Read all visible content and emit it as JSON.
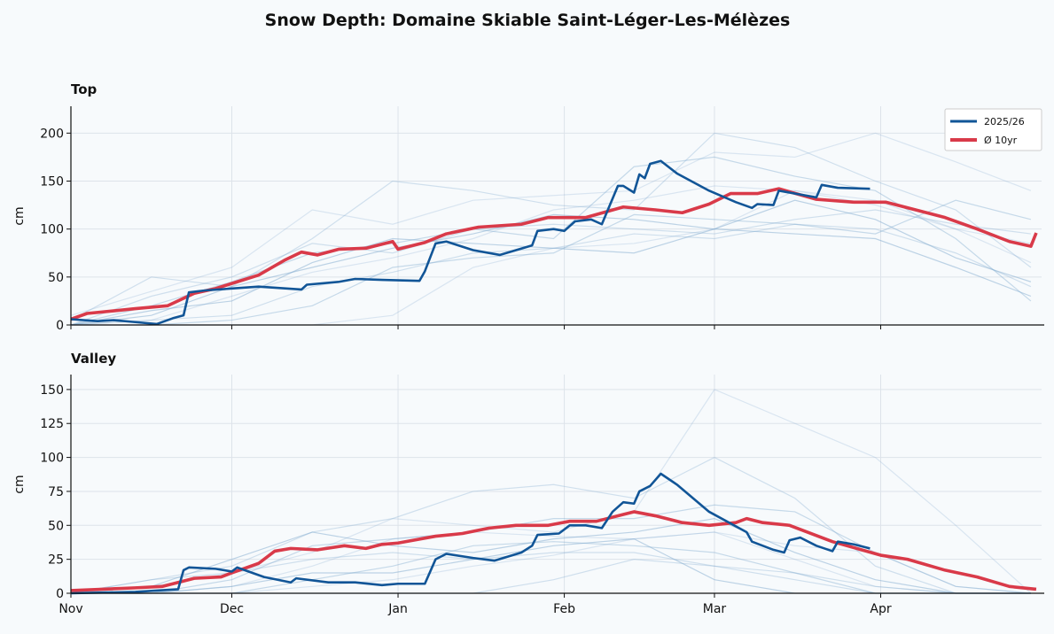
{
  "chart_data": {
    "title": "Snow Depth: Domaine Skiable Saint-Léger-Les-Mélèzes",
    "type": "line",
    "x_ticks": [
      {
        "label": "Nov",
        "date": "11-01"
      },
      {
        "label": "Dec",
        "date": "12-01"
      },
      {
        "label": "Jan",
        "date": "01-01"
      },
      {
        "label": "Feb",
        "date": "02-01"
      },
      {
        "label": "Mar",
        "date": "03-01"
      },
      {
        "label": "Apr",
        "date": "04-01"
      }
    ],
    "xlim": [
      "11-01",
      "04-30"
    ],
    "grid": true,
    "legend": {
      "placement": "top-right",
      "entries": [
        "2025/26",
        "Ø 10yr"
      ]
    },
    "colors": {
      "current": "#115597",
      "average": "#d93a49",
      "history": "#7fa9cf"
    },
    "history_dates": [
      "11-01",
      "11-16",
      "12-01",
      "12-16",
      "12-31",
      "01-15",
      "01-30",
      "02-14",
      "03-01",
      "03-16",
      "03-31",
      "04-15",
      "04-29"
    ],
    "panels": [
      {
        "title": "Top",
        "ylabel": "cm",
        "ylim": [
          0,
          228
        ],
        "yticks": [
          0,
          50,
          100,
          150,
          200
        ],
        "current": {
          "name": "2025/26",
          "points": [
            [
              "11-01",
              6
            ],
            [
              "11-06",
              4
            ],
            [
              "11-09",
              5
            ],
            [
              "11-13",
              3
            ],
            [
              "11-17",
              1
            ],
            [
              "11-20",
              7
            ],
            [
              "11-22",
              10
            ],
            [
              "11-23",
              34
            ],
            [
              "11-26",
              36
            ],
            [
              "12-01",
              38
            ],
            [
              "12-06",
              40
            ],
            [
              "12-14",
              37
            ],
            [
              "12-15",
              42
            ],
            [
              "12-21",
              45
            ],
            [
              "12-24",
              48
            ],
            [
              "12-29",
              47
            ],
            [
              "01-05",
              46
            ],
            [
              "01-06",
              56
            ],
            [
              "01-08",
              85
            ],
            [
              "01-10",
              87
            ],
            [
              "01-15",
              78
            ],
            [
              "01-20",
              73
            ],
            [
              "01-26",
              83
            ],
            [
              "01-27",
              98
            ],
            [
              "01-30",
              100
            ],
            [
              "02-01",
              98
            ],
            [
              "02-03",
              108
            ],
            [
              "02-06",
              110
            ],
            [
              "02-08",
              105
            ],
            [
              "02-11",
              145
            ],
            [
              "02-12",
              145
            ],
            [
              "02-14",
              138
            ],
            [
              "02-15",
              157
            ],
            [
              "02-16",
              153
            ],
            [
              "02-17",
              168
            ],
            [
              "02-19",
              171
            ],
            [
              "02-22",
              158
            ],
            [
              "02-28",
              140
            ],
            [
              "03-05",
              128
            ],
            [
              "03-08",
              122
            ],
            [
              "03-09",
              126
            ],
            [
              "03-12",
              125
            ],
            [
              "03-13",
              140
            ],
            [
              "03-20",
              133
            ],
            [
              "03-21",
              146
            ],
            [
              "03-24",
              143
            ],
            [
              "03-30",
              142
            ]
          ]
        },
        "average": {
          "name": "Ø 10yr",
          "points": [
            [
              "11-01",
              6
            ],
            [
              "11-04",
              12
            ],
            [
              "11-13",
              17
            ],
            [
              "11-19",
              20
            ],
            [
              "11-24",
              33
            ],
            [
              "11-28",
              38
            ],
            [
              "12-02",
              45
            ],
            [
              "12-06",
              52
            ],
            [
              "12-11",
              68
            ],
            [
              "12-14",
              76
            ],
            [
              "12-17",
              73
            ],
            [
              "12-21",
              79
            ],
            [
              "12-26",
              80
            ],
            [
              "12-31",
              87
            ],
            [
              "01-01",
              79
            ],
            [
              "01-06",
              86
            ],
            [
              "01-10",
              95
            ],
            [
              "01-16",
              102
            ],
            [
              "01-24",
              105
            ],
            [
              "01-29",
              112
            ],
            [
              "02-05",
              112
            ],
            [
              "02-12",
              123
            ],
            [
              "02-18",
              120
            ],
            [
              "02-23",
              117
            ],
            [
              "02-28",
              126
            ],
            [
              "03-04",
              137
            ],
            [
              "03-09",
              137
            ],
            [
              "03-13",
              142
            ],
            [
              "03-20",
              131
            ],
            [
              "03-27",
              128
            ],
            [
              "04-02",
              128
            ],
            [
              "04-13",
              112
            ],
            [
              "04-19",
              100
            ],
            [
              "04-25",
              87
            ],
            [
              "04-29",
              82
            ],
            [
              "04-30",
              96
            ]
          ]
        },
        "history": [
          [
            10,
            35,
            60,
            120,
            105,
            130,
            135,
            140,
            180,
            175,
            200,
            170,
            140
          ],
          [
            5,
            50,
            40,
            90,
            150,
            140,
            125,
            120,
            200,
            185,
            150,
            120,
            60
          ],
          [
            0,
            20,
            45,
            75,
            85,
            100,
            90,
            165,
            175,
            155,
            140,
            90,
            25
          ],
          [
            0,
            10,
            40,
            60,
            80,
            95,
            115,
            110,
            100,
            130,
            110,
            70,
            45
          ],
          [
            0,
            5,
            30,
            55,
            70,
            90,
            120,
            130,
            145,
            140,
            130,
            100,
            65
          ],
          [
            0,
            5,
            10,
            40,
            55,
            75,
            80,
            95,
            90,
            105,
            100,
            75,
            40
          ],
          [
            0,
            0,
            5,
            20,
            60,
            70,
            75,
            115,
            110,
            105,
            95,
            130,
            110
          ],
          [
            0,
            15,
            25,
            65,
            90,
            85,
            80,
            75,
            100,
            95,
            90,
            60,
            30
          ],
          [
            0,
            0,
            0,
            0,
            10,
            60,
            80,
            85,
            100,
            140,
            125,
            100,
            85
          ],
          [
            0,
            30,
            50,
            85,
            75,
            100,
            105,
            100,
            95,
            110,
            120,
            105,
            95
          ]
        ]
      },
      {
        "title": "Valley",
        "ylabel": "cm",
        "ylim": [
          0,
          161
        ],
        "yticks": [
          0,
          25,
          50,
          75,
          100,
          125,
          150
        ],
        "current": {
          "name": "2025/26",
          "points": [
            [
              "11-01",
              0
            ],
            [
              "11-13",
              1
            ],
            [
              "11-21",
              3
            ],
            [
              "11-22",
              17
            ],
            [
              "11-23",
              19
            ],
            [
              "11-28",
              18
            ],
            [
              "12-01",
              16
            ],
            [
              "12-02",
              19
            ],
            [
              "12-07",
              12
            ],
            [
              "12-12",
              8
            ],
            [
              "12-13",
              11
            ],
            [
              "12-19",
              8
            ],
            [
              "12-24",
              8
            ],
            [
              "12-29",
              6
            ],
            [
              "01-01",
              7
            ],
            [
              "01-06",
              7
            ],
            [
              "01-08",
              25
            ],
            [
              "01-10",
              29
            ],
            [
              "01-15",
              26
            ],
            [
              "01-19",
              24
            ],
            [
              "01-24",
              30
            ],
            [
              "01-26",
              35
            ],
            [
              "01-27",
              43
            ],
            [
              "01-31",
              44
            ],
            [
              "02-02",
              50
            ],
            [
              "02-05",
              50
            ],
            [
              "02-08",
              48
            ],
            [
              "02-10",
              60
            ],
            [
              "02-12",
              67
            ],
            [
              "02-14",
              66
            ],
            [
              "02-15",
              75
            ],
            [
              "02-17",
              79
            ],
            [
              "02-19",
              88
            ],
            [
              "02-22",
              80
            ],
            [
              "02-25",
              70
            ],
            [
              "02-28",
              60
            ],
            [
              "03-07",
              45
            ],
            [
              "03-08",
              38
            ],
            [
              "03-12",
              32
            ],
            [
              "03-14",
              30
            ],
            [
              "03-15",
              39
            ],
            [
              "03-17",
              41
            ],
            [
              "03-20",
              35
            ],
            [
              "03-23",
              31
            ],
            [
              "03-24",
              38
            ],
            [
              "03-27",
              36
            ],
            [
              "03-30",
              33
            ]
          ]
        },
        "average": {
          "name": "Ø 10yr",
          "points": [
            [
              "11-01",
              2
            ],
            [
              "11-13",
              4
            ],
            [
              "11-18",
              5
            ],
            [
              "11-21",
              8
            ],
            [
              "11-24",
              11
            ],
            [
              "11-29",
              12
            ],
            [
              "12-01",
              15
            ],
            [
              "12-06",
              22
            ],
            [
              "12-09",
              31
            ],
            [
              "12-12",
              33
            ],
            [
              "12-17",
              32
            ],
            [
              "12-22",
              35
            ],
            [
              "12-26",
              33
            ],
            [
              "12-29",
              36
            ],
            [
              "01-01",
              37
            ],
            [
              "01-08",
              42
            ],
            [
              "01-13",
              44
            ],
            [
              "01-18",
              48
            ],
            [
              "01-23",
              50
            ],
            [
              "01-29",
              50
            ],
            [
              "02-02",
              53
            ],
            [
              "02-07",
              53
            ],
            [
              "02-12",
              58
            ],
            [
              "02-14",
              60
            ],
            [
              "02-18",
              57
            ],
            [
              "02-23",
              52
            ],
            [
              "02-28",
              50
            ],
            [
              "03-05",
              52
            ],
            [
              "03-07",
              55
            ],
            [
              "03-10",
              52
            ],
            [
              "03-15",
              50
            ],
            [
              "03-23",
              38
            ],
            [
              "04-01",
              28
            ],
            [
              "04-06",
              25
            ],
            [
              "04-13",
              17
            ],
            [
              "04-19",
              12
            ],
            [
              "04-25",
              5
            ],
            [
              "04-30",
              3
            ]
          ]
        },
        "history": [
          [
            0,
            5,
            15,
            30,
            55,
            50,
            45,
            60,
            150,
            125,
            100,
            50,
            0
          ],
          [
            0,
            10,
            20,
            45,
            55,
            75,
            80,
            70,
            100,
            70,
            20,
            0,
            0
          ],
          [
            0,
            0,
            10,
            35,
            40,
            45,
            55,
            55,
            65,
            60,
            30,
            5,
            0
          ],
          [
            0,
            5,
            25,
            45,
            35,
            30,
            40,
            45,
            55,
            30,
            10,
            0,
            0
          ],
          [
            0,
            0,
            5,
            20,
            40,
            45,
            42,
            40,
            45,
            25,
            5,
            0,
            0
          ],
          [
            0,
            10,
            15,
            25,
            30,
            25,
            30,
            30,
            20,
            10,
            0,
            0,
            0
          ],
          [
            0,
            0,
            0,
            10,
            20,
            35,
            38,
            35,
            30,
            15,
            0,
            0,
            0
          ],
          [
            0,
            0,
            5,
            15,
            15,
            25,
            35,
            40,
            10,
            0,
            0,
            0,
            0
          ],
          [
            0,
            0,
            0,
            5,
            10,
            20,
            28,
            40,
            45,
            35,
            30,
            5,
            0
          ],
          [
            0,
            0,
            0,
            0,
            0,
            0,
            10,
            25,
            20,
            15,
            5,
            0,
            0
          ]
        ]
      }
    ]
  }
}
